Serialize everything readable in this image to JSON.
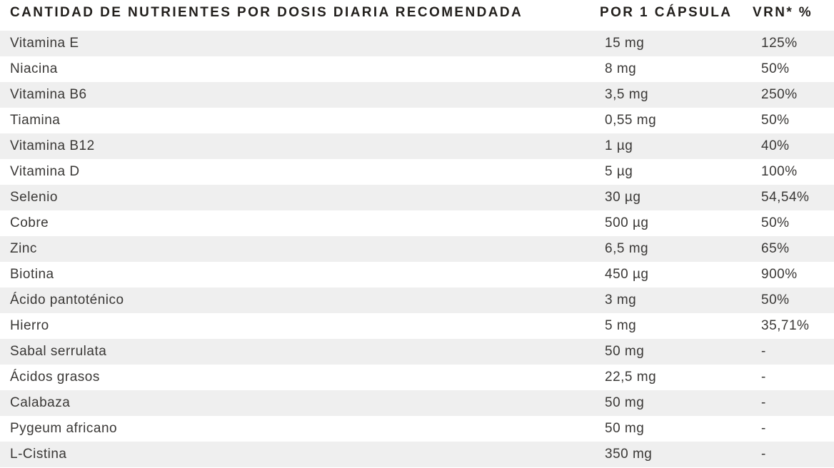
{
  "table": {
    "title_column": "CANTIDAD DE NUTRIENTES POR DOSIS DIARIA RECOMENDADA",
    "columns": {
      "nutrient": "CANTIDAD DE NUTRIENTES POR DOSIS DIARIA RECOMENDADA",
      "per_capsule": "POR 1 CÁPSULA",
      "vrn": "VRN* %"
    },
    "rows": [
      {
        "nutrient": "Vitamina E",
        "per_capsule": "15 mg",
        "vrn": "125%"
      },
      {
        "nutrient": "Niacina",
        "per_capsule": "8 mg",
        "vrn": "50%"
      },
      {
        "nutrient": "Vitamina B6",
        "per_capsule": "3,5 mg",
        "vrn": "250%"
      },
      {
        "nutrient": "Tiamina",
        "per_capsule": "0,55 mg",
        "vrn": "50%"
      },
      {
        "nutrient": "Vitamina B12",
        "per_capsule": "1 µg",
        "vrn": "40%"
      },
      {
        "nutrient": "Vitamina D",
        "per_capsule": "5 µg",
        "vrn": "100%"
      },
      {
        "nutrient": "Selenio",
        "per_capsule": "30 µg",
        "vrn": "54,54%"
      },
      {
        "nutrient": "Cobre",
        "per_capsule": "500 µg",
        "vrn": "50%"
      },
      {
        "nutrient": "Zinc",
        "per_capsule": "6,5 mg",
        "vrn": "65%"
      },
      {
        "nutrient": "Biotina",
        "per_capsule": "450 µg",
        "vrn": "900%"
      },
      {
        "nutrient": "Ácido pantoténico",
        "per_capsule": "3 mg",
        "vrn": "50%"
      },
      {
        "nutrient": "Hierro",
        "per_capsule": "5 mg",
        "vrn": "35,71%"
      },
      {
        "nutrient": "Sabal serrulata",
        "per_capsule": "50 mg",
        "vrn": "-"
      },
      {
        "nutrient": "Ácidos grasos",
        "per_capsule": "22,5 mg",
        "vrn": "-"
      },
      {
        "nutrient": "Calabaza",
        "per_capsule": "50 mg",
        "vrn": "-"
      },
      {
        "nutrient": "Pygeum africano",
        "per_capsule": "50 mg",
        "vrn": "-"
      },
      {
        "nutrient": "L-Cistina",
        "per_capsule": "350 mg",
        "vrn": "-"
      }
    ]
  },
  "colors": {
    "stripe_background": "#efefef",
    "row_text": "#3a3836",
    "header_text": "#221f1c"
  }
}
